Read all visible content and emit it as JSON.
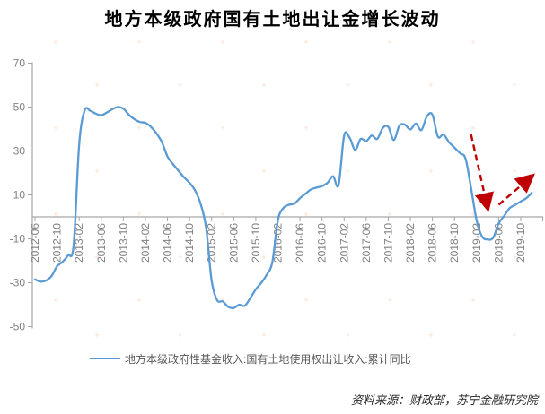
{
  "title": "地方本级政府国有土地出让金增长波动",
  "legend": {
    "label": "地方本级政府性基金收入:国有土地使用权出让收入:累计同比"
  },
  "source": "资料来源：财政部，苏宁金融研究院",
  "colors": {
    "line": "#5B9BD5",
    "arrow": "#C00000",
    "axis": "#A6A6A6",
    "tick_label": "#808080",
    "legend_text": "#595959",
    "watermark": "#F4B183"
  },
  "chart_data": {
    "type": "line",
    "title": "地方本级政府国有土地出让金增长波动",
    "xlabel": "",
    "ylabel": "",
    "ylim": [
      -50,
      70
    ],
    "yticks": [
      70,
      50,
      30,
      10,
      -10,
      -30,
      -50
    ],
    "grid": false,
    "legend_position": "bottom",
    "x_tick_interval": 4,
    "x_tick_labels": [
      "2012-06",
      "2012-10",
      "2013-02",
      "2013-06",
      "2013-10",
      "2014-02",
      "2014-06",
      "2014-10",
      "2015-02",
      "2015-06",
      "2015-10",
      "2016-02",
      "2016-06",
      "2016-10",
      "2017-02",
      "2017-06",
      "2017-10",
      "2018-02",
      "2018-06",
      "2018-10",
      "2019-02",
      "2019-06",
      "2019-10"
    ],
    "x": [
      "2012-06",
      "2012-07",
      "2012-08",
      "2012-09",
      "2012-10",
      "2012-11",
      "2012-12",
      "2013-01",
      "2013-02",
      "2013-03",
      "2013-04",
      "2013-05",
      "2013-06",
      "2013-07",
      "2013-08",
      "2013-09",
      "2013-10",
      "2013-11",
      "2013-12",
      "2014-01",
      "2014-02",
      "2014-03",
      "2014-04",
      "2014-05",
      "2014-06",
      "2014-07",
      "2014-08",
      "2014-09",
      "2014-10",
      "2014-11",
      "2014-12",
      "2015-01",
      "2015-02",
      "2015-03",
      "2015-04",
      "2015-05",
      "2015-06",
      "2015-07",
      "2015-08",
      "2015-09",
      "2015-10",
      "2015-11",
      "2015-12",
      "2016-01",
      "2016-02",
      "2016-03",
      "2016-04",
      "2016-05",
      "2016-06",
      "2016-07",
      "2016-08",
      "2016-09",
      "2016-10",
      "2016-11",
      "2016-12",
      "2017-01",
      "2017-02",
      "2017-03",
      "2017-04",
      "2017-05",
      "2017-06",
      "2017-07",
      "2017-08",
      "2017-09",
      "2017-10",
      "2017-11",
      "2017-12",
      "2018-01",
      "2018-02",
      "2018-03",
      "2018-04",
      "2018-05",
      "2018-06",
      "2018-07",
      "2018-08",
      "2018-09",
      "2018-10",
      "2018-11",
      "2018-12",
      "2019-01",
      "2019-02",
      "2019-03",
      "2019-04",
      "2019-05",
      "2019-06",
      "2019-07",
      "2019-08",
      "2019-09",
      "2019-10",
      "2019-11",
      "2019-12"
    ],
    "series": [
      {
        "name": "地方本级政府性基金收入:国有土地使用权出让收入:累计同比",
        "color": "#5B9BD5",
        "values": [
          -28.5,
          -29.5,
          -29,
          -27,
          -22.5,
          -20.5,
          -17.5,
          -13,
          33,
          48.5,
          48.3,
          47,
          46.3,
          47.5,
          49,
          50,
          49.3,
          46.5,
          44.5,
          43.2,
          42.8,
          41,
          38,
          34,
          27.5,
          24,
          21,
          18,
          15.5,
          12,
          6,
          -5,
          -29,
          -38,
          -38.5,
          -41,
          -41.5,
          -40,
          -40.5,
          -37,
          -33,
          -30,
          -26.3,
          -20.5,
          -1.5,
          4,
          5.5,
          6,
          8.5,
          10.5,
          12.5,
          13.3,
          14,
          15.5,
          18.5,
          14.5,
          37,
          36,
          30.5,
          35.5,
          34.5,
          37,
          35.5,
          40.5,
          41,
          35,
          41.5,
          42,
          39.8,
          42.5,
          39.5,
          45.8,
          46.5,
          36.5,
          37.5,
          34,
          31.5,
          29,
          26.5,
          13,
          -1.5,
          -9,
          -10.3,
          -9.5,
          -3,
          0.5,
          4,
          5.5,
          7,
          8.5,
          11
        ]
      }
    ],
    "annotations": [
      {
        "type": "dashed-arrow",
        "direction": "down",
        "from": {
          "x": "2019-01",
          "y": 37.5
        },
        "to": {
          "x": "2019-04",
          "y": 4
        }
      },
      {
        "type": "dashed-arrow",
        "direction": "up-right",
        "from": {
          "x": "2019-06",
          "y": 5.5
        },
        "to": {
          "x": "2019-12",
          "y": 18.5
        }
      }
    ]
  }
}
